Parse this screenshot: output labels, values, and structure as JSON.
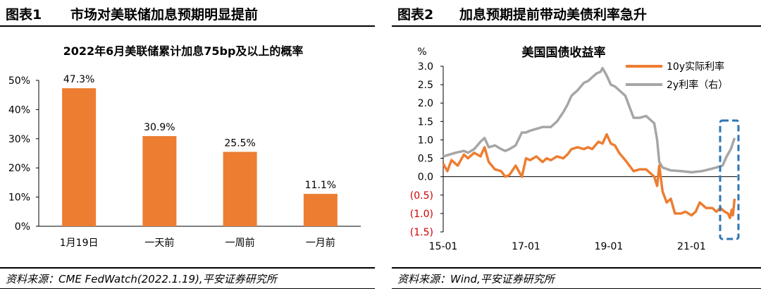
{
  "left_panel": {
    "figure_no": "图表1",
    "figure_title": "市场对美联储加息预期明显提前",
    "source": "资料来源：CME FedWatch(2022.1.19),平安证券研究所"
  },
  "right_panel": {
    "figure_no": "图表2",
    "figure_title": "加息预期提前带动美债利率急升",
    "source": "资料来源：Wind,平安证券研究所"
  },
  "chart_data": [
    {
      "type": "bar",
      "title": "2022年6月美联储累计加息75bp及以上的概率",
      "categories": [
        "1月19日",
        "一天前",
        "一周前",
        "一月前"
      ],
      "values": [
        47.3,
        30.9,
        25.5,
        11.1
      ],
      "value_labels": [
        "47.3%",
        "30.9%",
        "25.5%",
        "11.1%"
      ],
      "ylim": [
        0,
        50
      ],
      "yticks": [
        "0%",
        "10%",
        "20%",
        "30%",
        "40%",
        "50%"
      ],
      "color": "#ed7d31"
    },
    {
      "type": "line",
      "title": "美国国债收益率",
      "y_unit": "%",
      "ylim": [
        -1.5,
        3.0
      ],
      "yticks": [
        "3.0",
        "2.5",
        "2.0",
        "1.5",
        "1.0",
        "0.5",
        "0.0",
        "(0.5)",
        "(1.0)",
        "(1.5)"
      ],
      "xticks": [
        "15-01",
        "17-01",
        "19-01",
        "21-01"
      ],
      "x_range": [
        "2015-01",
        "2022-01"
      ],
      "series": [
        {
          "name": "10y实际利率",
          "color": "#ed7d31",
          "t": [
            2015.0,
            2015.1,
            2015.2,
            2015.35,
            2015.5,
            2015.6,
            2015.75,
            2015.9,
            2016.0,
            2016.1,
            2016.25,
            2016.4,
            2016.5,
            2016.6,
            2016.75,
            2016.9,
            2017.0,
            2017.1,
            2017.25,
            2017.4,
            2017.5,
            2017.6,
            2017.75,
            2017.9,
            2018.0,
            2018.1,
            2018.25,
            2018.4,
            2018.5,
            2018.6,
            2018.75,
            2018.85,
            2018.95,
            2019.05,
            2019.15,
            2019.25,
            2019.4,
            2019.5,
            2019.6,
            2019.75,
            2019.9,
            2020.0,
            2020.1,
            2020.17,
            2020.22,
            2020.3,
            2020.4,
            2020.5,
            2020.6,
            2020.75,
            2020.85,
            2021.0,
            2021.1,
            2021.2,
            2021.35,
            2021.5,
            2021.6,
            2021.7,
            2021.8,
            2021.88,
            2021.93,
            2021.97,
            2022.0,
            2022.04
          ],
          "values": [
            0.35,
            0.15,
            0.45,
            0.3,
            0.6,
            0.5,
            0.65,
            0.55,
            0.8,
            0.4,
            0.2,
            0.15,
            0.0,
            0.05,
            0.3,
            0.0,
            0.5,
            0.45,
            0.55,
            0.4,
            0.5,
            0.45,
            0.55,
            0.5,
            0.6,
            0.75,
            0.8,
            0.75,
            0.8,
            0.75,
            0.95,
            0.9,
            1.15,
            0.9,
            0.85,
            0.65,
            0.45,
            0.3,
            0.15,
            0.2,
            0.2,
            0.1,
            0.0,
            -0.25,
            0.3,
            -0.4,
            -0.7,
            -0.6,
            -1.0,
            -1.0,
            -0.95,
            -1.05,
            -0.95,
            -0.7,
            -0.85,
            -0.85,
            -0.95,
            -0.85,
            -0.95,
            -1.0,
            -1.12,
            -0.9,
            -1.05,
            -0.6
          ]
        },
        {
          "name": "2y利率（右）",
          "color": "#a6a6a6",
          "t": [
            2015.0,
            2015.15,
            2015.3,
            2015.5,
            2015.6,
            2015.75,
            2015.9,
            2016.0,
            2016.1,
            2016.25,
            2016.4,
            2016.5,
            2016.6,
            2016.75,
            2016.9,
            2017.0,
            2017.1,
            2017.25,
            2017.4,
            2017.5,
            2017.6,
            2017.75,
            2017.9,
            2018.0,
            2018.1,
            2018.25,
            2018.4,
            2018.5,
            2018.6,
            2018.7,
            2018.8,
            2018.85,
            2018.95,
            2019.05,
            2019.15,
            2019.25,
            2019.4,
            2019.5,
            2019.6,
            2019.75,
            2019.9,
            2020.0,
            2020.1,
            2020.17,
            2020.22,
            2020.3,
            2020.5,
            2020.75,
            2021.0,
            2021.25,
            2021.5,
            2021.6,
            2021.75,
            2021.85,
            2021.95,
            2022.04
          ],
          "values": [
            0.55,
            0.6,
            0.65,
            0.7,
            0.65,
            0.75,
            0.95,
            1.05,
            0.8,
            0.85,
            0.75,
            0.7,
            0.75,
            0.85,
            1.2,
            1.2,
            1.25,
            1.3,
            1.35,
            1.35,
            1.35,
            1.5,
            1.75,
            1.95,
            2.2,
            2.35,
            2.55,
            2.6,
            2.7,
            2.8,
            2.85,
            2.95,
            2.75,
            2.5,
            2.45,
            2.35,
            2.2,
            1.9,
            1.6,
            1.6,
            1.65,
            1.55,
            1.45,
            1.0,
            0.4,
            0.25,
            0.17,
            0.15,
            0.12,
            0.15,
            0.22,
            0.25,
            0.3,
            0.55,
            0.75,
            1.05
          ]
        }
      ],
      "annotation": "dashed-box"
    }
  ]
}
